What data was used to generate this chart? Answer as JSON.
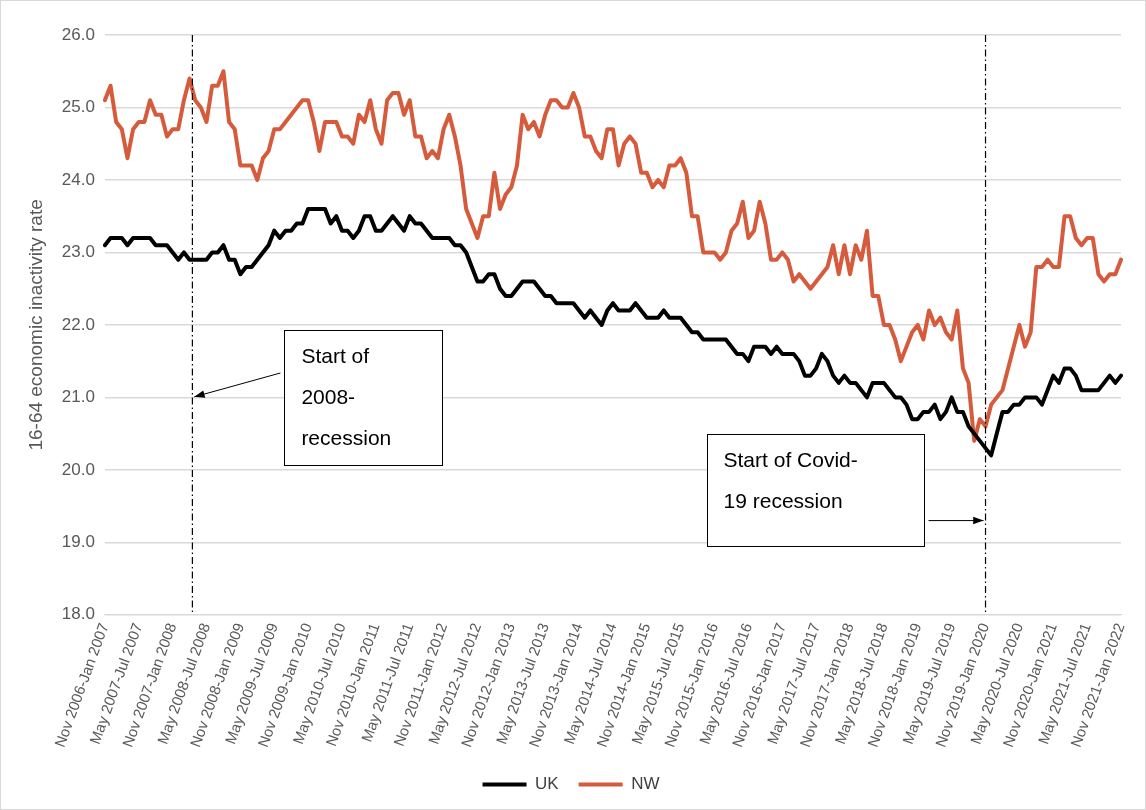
{
  "chart_data": {
    "type": "line",
    "ylabel": "16-64 economic inactivity rate",
    "categories": [
      "Nov 2006-Jan 2007",
      null,
      null,
      null,
      null,
      null,
      "May 2007-Jul 2007",
      null,
      null,
      null,
      null,
      null,
      "Nov 2007-Jan 2008",
      null,
      null,
      null,
      null,
      null,
      "May 2008-Jul 2008",
      null,
      null,
      null,
      null,
      null,
      "Nov 2008-Jan 2009",
      null,
      null,
      null,
      null,
      null,
      "May 2009-Jul 2009",
      null,
      null,
      null,
      null,
      null,
      "Nov 2009-Jan 2010",
      null,
      null,
      null,
      null,
      null,
      "May 2010-Jul 2010",
      null,
      null,
      null,
      null,
      null,
      "Nov 2010-Jan 2011",
      null,
      null,
      null,
      null,
      null,
      "May 2011-Jul 2011",
      null,
      null,
      null,
      null,
      null,
      "Nov 2011-Jan 2012",
      null,
      null,
      null,
      null,
      null,
      "May 2012-Jul 2012",
      null,
      null,
      null,
      null,
      null,
      "Nov 2012-Jan 2013",
      null,
      null,
      null,
      null,
      null,
      "May 2013-Jul 2013",
      null,
      null,
      null,
      null,
      null,
      "Nov 2013-Jan 2014",
      null,
      null,
      null,
      null,
      null,
      "May 2014-Jul 2014",
      null,
      null,
      null,
      null,
      null,
      "Nov 2014-Jan 2015",
      null,
      null,
      null,
      null,
      null,
      "May 2015-Jul 2015",
      null,
      null,
      null,
      null,
      null,
      "Nov 2015-Jan 2016",
      null,
      null,
      null,
      null,
      null,
      "May 2016-Jul 2016",
      null,
      null,
      null,
      null,
      null,
      "Nov 2016-Jan 2017",
      null,
      null,
      null,
      null,
      null,
      "May 2017-Jul 2017",
      null,
      null,
      null,
      null,
      null,
      "Nov 2017-Jan 2018",
      null,
      null,
      null,
      null,
      null,
      "May 2018-Jul 2018",
      null,
      null,
      null,
      null,
      null,
      "Nov 2018-Jan 2019",
      null,
      null,
      null,
      null,
      null,
      "May 2019-Jul 2019",
      null,
      null,
      null,
      null,
      null,
      "Nov 2019-Jan 2020",
      null,
      null,
      null,
      null,
      null,
      "May 2020-Jul 2020",
      null,
      null,
      null,
      null,
      null,
      "Nov 2020-Jan 2021",
      null,
      null,
      null,
      null,
      null,
      "May 2021-Jul 2021",
      null,
      null,
      null,
      null,
      null,
      "Nov 2021-Jan 2022"
    ],
    "series": [
      {
        "name": "UK",
        "color": "#000000",
        "values": [
          23.1,
          23.2,
          23.2,
          23.2,
          23.1,
          23.2,
          23.2,
          23.2,
          23.2,
          23.1,
          23.1,
          23.1,
          23.0,
          22.9,
          23.0,
          22.9,
          22.9,
          22.9,
          22.9,
          23.0,
          23.0,
          23.1,
          22.9,
          22.9,
          22.7,
          22.8,
          22.8,
          22.9,
          23.0,
          23.1,
          23.3,
          23.2,
          23.3,
          23.3,
          23.4,
          23.4,
          23.6,
          23.6,
          23.6,
          23.6,
          23.4,
          23.5,
          23.3,
          23.3,
          23.2,
          23.3,
          23.5,
          23.5,
          23.3,
          23.3,
          23.4,
          23.5,
          23.4,
          23.3,
          23.5,
          23.4,
          23.4,
          23.3,
          23.2,
          23.2,
          23.2,
          23.2,
          23.1,
          23.1,
          23.0,
          22.8,
          22.6,
          22.6,
          22.7,
          22.7,
          22.5,
          22.4,
          22.4,
          22.5,
          22.6,
          22.6,
          22.6,
          22.5,
          22.4,
          22.4,
          22.3,
          22.3,
          22.3,
          22.3,
          22.2,
          22.1,
          22.2,
          22.1,
          22.0,
          22.2,
          22.3,
          22.2,
          22.2,
          22.2,
          22.3,
          22.2,
          22.1,
          22.1,
          22.1,
          22.2,
          22.1,
          22.1,
          22.1,
          22.0,
          21.9,
          21.9,
          21.8,
          21.8,
          21.8,
          21.8,
          21.8,
          21.7,
          21.6,
          21.6,
          21.5,
          21.7,
          21.7,
          21.7,
          21.6,
          21.7,
          21.6,
          21.6,
          21.6,
          21.5,
          21.3,
          21.3,
          21.4,
          21.6,
          21.5,
          21.3,
          21.2,
          21.3,
          21.2,
          21.2,
          21.1,
          21.0,
          21.2,
          21.2,
          21.2,
          21.1,
          21.0,
          21.0,
          20.9,
          20.7,
          20.7,
          20.8,
          20.8,
          20.9,
          20.7,
          20.8,
          21.0,
          20.8,
          20.8,
          20.6,
          20.5,
          20.4,
          20.3,
          20.2,
          20.5,
          20.8,
          20.8,
          20.9,
          20.9,
          21.0,
          21.0,
          21.0,
          20.9,
          21.1,
          21.3,
          21.2,
          21.4,
          21.4,
          21.3,
          21.1,
          21.1,
          21.1,
          21.1,
          21.2,
          21.3,
          21.2,
          21.3
        ]
      },
      {
        "name": "NW",
        "color": "#d65b3c",
        "values": [
          25.1,
          25.3,
          24.8,
          24.7,
          24.3,
          24.7,
          24.8,
          24.8,
          25.1,
          24.9,
          24.9,
          24.6,
          24.7,
          24.7,
          25.1,
          25.4,
          25.1,
          25.0,
          24.8,
          25.3,
          25.3,
          25.5,
          24.8,
          24.7,
          24.2,
          24.2,
          24.2,
          24.0,
          24.3,
          24.4,
          24.7,
          24.7,
          24.8,
          24.9,
          25.0,
          25.1,
          25.1,
          24.8,
          24.4,
          24.8,
          24.8,
          24.8,
          24.6,
          24.6,
          24.5,
          24.9,
          24.8,
          25.1,
          24.7,
          24.5,
          25.1,
          25.2,
          25.2,
          24.9,
          25.1,
          24.6,
          24.6,
          24.3,
          24.4,
          24.3,
          24.7,
          24.9,
          24.6,
          24.2,
          23.6,
          23.4,
          23.2,
          23.5,
          23.5,
          24.1,
          23.6,
          23.8,
          23.9,
          24.2,
          24.9,
          24.7,
          24.8,
          24.6,
          24.9,
          25.1,
          25.1,
          25.0,
          25.0,
          25.2,
          25.0,
          24.6,
          24.6,
          24.4,
          24.3,
          24.7,
          24.7,
          24.2,
          24.5,
          24.6,
          24.5,
          24.1,
          24.1,
          23.9,
          24.0,
          23.9,
          24.2,
          24.2,
          24.3,
          24.1,
          23.5,
          23.5,
          23.0,
          23.0,
          23.0,
          22.9,
          23.0,
          23.3,
          23.4,
          23.7,
          23.2,
          23.3,
          23.7,
          23.4,
          22.9,
          22.9,
          23.0,
          22.9,
          22.6,
          22.7,
          22.6,
          22.5,
          22.6,
          22.7,
          22.8,
          23.1,
          22.7,
          23.1,
          22.7,
          23.1,
          22.9,
          23.3,
          22.4,
          22.4,
          22.0,
          22.0,
          21.8,
          21.5,
          21.7,
          21.9,
          22.0,
          21.8,
          22.2,
          22.0,
          22.1,
          21.9,
          21.8,
          22.2,
          21.4,
          21.2,
          20.4,
          20.7,
          20.6,
          20.9,
          21.0,
          21.1,
          21.4,
          21.7,
          22.0,
          21.7,
          21.9,
          22.8,
          22.8,
          22.9,
          22.8,
          22.8,
          23.5,
          23.5,
          23.2,
          23.1,
          23.2,
          23.2,
          22.7,
          22.6,
          22.7,
          22.7,
          22.9
        ]
      }
    ],
    "ylim": [
      18,
      26
    ],
    "yticks": [
      {
        "value": 18,
        "label": "18.0"
      },
      {
        "value": 19,
        "label": "19.0"
      },
      {
        "value": 20,
        "label": "20.0"
      },
      {
        "value": 21,
        "label": "21.0"
      },
      {
        "value": 22,
        "label": "22.0"
      },
      {
        "value": 23,
        "label": "23.0"
      },
      {
        "value": 24,
        "label": "24.0"
      },
      {
        "value": 25,
        "label": "25.0"
      },
      {
        "value": 26,
        "label": "26.0"
      }
    ],
    "annotations": [
      "Start of 2008-recession",
      "Start of Covid-19 recession"
    ],
    "grid": "y",
    "legend": "bottom",
    "marker": "none",
    "line_style": "solid"
  }
}
